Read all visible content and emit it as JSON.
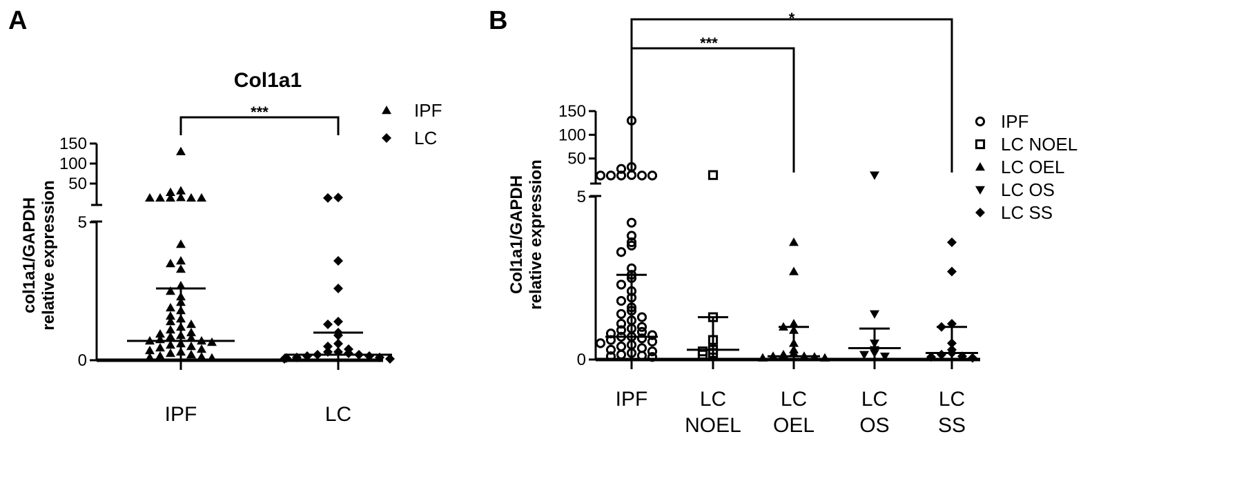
{
  "chart_data": [
    {
      "panel_label": "A",
      "type": "scatter",
      "title": "Col1a1",
      "ylabel_line1": "col1a1/GAPDH",
      "ylabel_line2": "relative expression",
      "xlabel": "",
      "categories": [
        "IPF",
        "LC"
      ],
      "y_axis": "broken",
      "ylim_lower": [
        0,
        5
      ],
      "ylim_upper": [
        0,
        150
      ],
      "yticks_lower": [
        "0",
        "5"
      ],
      "yticks_upper": [
        "50",
        "100",
        "150"
      ],
      "significance": [
        {
          "from": "IPF",
          "to": "LC",
          "label": "***"
        }
      ],
      "legend": {
        "position": "top-right",
        "entries": [
          {
            "label": "IPF",
            "marker": "triangle-up"
          },
          {
            "label": "LC",
            "marker": "diamond"
          }
        ]
      },
      "series": [
        {
          "name": "IPF",
          "category": "IPF",
          "marker": "triangle-up",
          "upper_values": [
            130,
            32,
            28,
            15,
            14,
            14,
            14,
            14,
            14
          ],
          "lower_values": [
            4.2,
            3.6,
            3.5,
            3.3,
            2.7,
            2.5,
            2.3,
            2.1,
            1.9,
            1.8,
            1.6,
            1.5,
            1.4,
            1.3,
            1.2,
            1.1,
            1.0,
            0.95,
            0.9,
            0.85,
            0.8,
            0.75,
            0.7,
            0.7,
            0.65,
            0.6,
            0.55,
            0.5,
            0.45,
            0.4,
            0.35,
            0.3,
            0.25,
            0.2,
            0.15,
            0.12,
            0.1,
            0.08
          ],
          "median": 0.7,
          "error_upper": 2.6,
          "error_lower": 0
        },
        {
          "name": "LC",
          "category": "LC",
          "marker": "diamond",
          "upper_values": [
            15,
            14
          ],
          "lower_values": [
            3.6,
            2.6,
            1.4,
            1.3,
            1.0,
            0.9,
            0.6,
            0.5,
            0.4,
            0.3,
            0.3,
            0.25,
            0.2,
            0.2,
            0.15,
            0.15,
            0.1,
            0.1,
            0.08,
            0.05,
            0.05
          ],
          "median": 0.2,
          "error_upper": 1.0,
          "error_lower": 0
        }
      ]
    },
    {
      "panel_label": "B",
      "type": "scatter",
      "title": "",
      "ylabel_line1": "Col1a1/GAPDH",
      "ylabel_line2": "relative expression",
      "xlabel": "",
      "categories": [
        "IPF",
        "LC NOEL",
        "LC OEL",
        "LC OS",
        "LC SS"
      ],
      "category_lines": [
        [
          "IPF"
        ],
        [
          "LC",
          "NOEL"
        ],
        [
          "LC",
          "OEL"
        ],
        [
          "LC",
          "OS"
        ],
        [
          "LC",
          "SS"
        ]
      ],
      "y_axis": "broken",
      "ylim_lower": [
        0,
        5
      ],
      "ylim_upper": [
        0,
        150
      ],
      "yticks_lower": [
        "0",
        "5"
      ],
      "yticks_upper": [
        "50",
        "100",
        "150"
      ],
      "significance": [
        {
          "from": "IPF",
          "to": "LC SS",
          "label": "*"
        },
        {
          "from": "IPF",
          "to": "LC OEL",
          "label": "***"
        }
      ],
      "legend": {
        "position": "top-right",
        "entries": [
          {
            "label": "IPF",
            "marker": "circle-open"
          },
          {
            "label": "LC NOEL",
            "marker": "square-open"
          },
          {
            "label": "LC OEL",
            "marker": "triangle-up"
          },
          {
            "label": "LC OS",
            "marker": "triangle-down"
          },
          {
            "label": "LC SS",
            "marker": "diamond"
          }
        ]
      },
      "series": [
        {
          "name": "IPF",
          "category": "IPF",
          "marker": "circle-open",
          "upper_values": [
            130,
            32,
            28,
            15,
            14,
            14,
            14,
            14,
            14
          ],
          "lower_values": [
            4.2,
            3.8,
            3.6,
            3.5,
            3.3,
            2.8,
            2.6,
            2.5,
            2.3,
            2.1,
            1.9,
            1.8,
            1.6,
            1.5,
            1.4,
            1.3,
            1.2,
            1.1,
            1.0,
            0.95,
            0.9,
            0.85,
            0.8,
            0.75,
            0.7,
            0.7,
            0.65,
            0.6,
            0.55,
            0.5,
            0.45,
            0.4,
            0.35,
            0.3,
            0.25,
            0.2,
            0.15,
            0.12,
            0.1,
            0.08
          ],
          "median": 0.7,
          "error_upper": 2.6,
          "error_lower": 0
        },
        {
          "name": "LC NOEL",
          "category": "LC NOEL",
          "marker": "square-open",
          "upper_values": [
            15
          ],
          "lower_values": [
            1.3,
            0.6,
            0.3,
            0.25,
            0.2,
            0.15
          ],
          "median": 0.3,
          "error_upper": 1.3,
          "error_lower": 0
        },
        {
          "name": "LC OEL",
          "category": "LC OEL",
          "marker": "triangle-up",
          "upper_values": [],
          "lower_values": [
            3.6,
            2.7,
            1.1,
            1.0,
            0.9,
            0.5,
            0.3,
            0.2,
            0.15,
            0.1,
            0.1,
            0.08,
            0.05,
            0.05
          ],
          "median": 0.1,
          "error_upper": 1.0,
          "error_lower": 0
        },
        {
          "name": "LC OS",
          "category": "LC OS",
          "marker": "triangle-down",
          "upper_values": [
            15
          ],
          "lower_values": [
            1.4,
            0.5,
            0.3,
            0.2,
            0.15,
            0.1
          ],
          "median": 0.35,
          "error_upper": 0.95,
          "error_lower": 0
        },
        {
          "name": "LC SS",
          "category": "LC SS",
          "marker": "diamond",
          "upper_values": [],
          "lower_values": [
            3.6,
            2.7,
            1.1,
            1.0,
            0.5,
            0.3,
            0.2,
            0.15,
            0.1,
            0.08,
            0.05
          ],
          "median": 0.2,
          "error_upper": 1.0,
          "error_lower": 0
        }
      ]
    }
  ]
}
